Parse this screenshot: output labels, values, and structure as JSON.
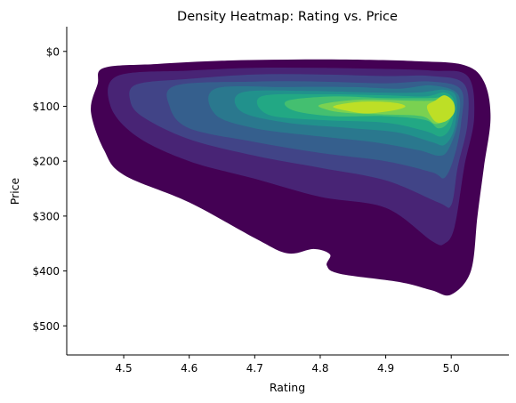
{
  "chart_data": {
    "type": "heatmap",
    "subtype": "kde-filled-contour",
    "title": "Density Heatmap: Rating vs. Price",
    "xlabel": "Rating",
    "ylabel": "Price",
    "x_ticks": [
      4.5,
      4.6,
      4.7,
      4.8,
      4.9,
      5.0
    ],
    "x_tick_labels": [
      "4.5",
      "4.6",
      "4.7",
      "4.8",
      "4.9",
      "5.0"
    ],
    "y_ticks": [
      0,
      100,
      200,
      300,
      400,
      500
    ],
    "y_tick_labels": [
      "$0",
      "$100",
      "$200",
      "$300",
      "$400",
      "$500"
    ],
    "xlim": [
      4.413,
      5.088
    ],
    "ylim": [
      553,
      -45
    ],
    "y_axis_inverted": true,
    "colormap": "viridis",
    "grid": false,
    "colors": [
      "#440154",
      "#482475",
      "#414487",
      "#355f8d",
      "#2a788e",
      "#21918c",
      "#22a884",
      "#44bf70",
      "#7ad151",
      "#bddf26"
    ],
    "levels": [
      {
        "level": 1,
        "color": "#440154",
        "outline": [
          [
            4.47,
            30
          ],
          [
            4.55,
            23
          ],
          [
            4.65,
            17
          ],
          [
            4.75,
            15
          ],
          [
            4.85,
            15
          ],
          [
            4.95,
            18
          ],
          [
            5.02,
            25
          ],
          [
            5.05,
            55
          ],
          [
            5.06,
            120
          ],
          [
            5.05,
            210
          ],
          [
            5.04,
            300
          ],
          [
            5.03,
            400
          ],
          [
            5.0,
            443
          ],
          [
            4.97,
            435
          ],
          [
            4.92,
            420
          ],
          [
            4.83,
            405
          ],
          [
            4.81,
            390
          ],
          [
            4.815,
            370
          ],
          [
            4.79,
            360
          ],
          [
            4.75,
            368
          ],
          [
            4.7,
            340
          ],
          [
            4.6,
            275
          ],
          [
            4.5,
            225
          ],
          [
            4.47,
            180
          ],
          [
            4.45,
            110
          ],
          [
            4.46,
            60
          ]
        ]
      },
      {
        "level": 2,
        "color": "#482475",
        "outline": [
          [
            4.49,
            45
          ],
          [
            4.6,
            35
          ],
          [
            4.7,
            30
          ],
          [
            4.8,
            30
          ],
          [
            4.9,
            32
          ],
          [
            4.97,
            35
          ],
          [
            5.025,
            45
          ],
          [
            5.035,
            120
          ],
          [
            5.02,
            210
          ],
          [
            5.005,
            320
          ],
          [
            4.99,
            350
          ],
          [
            4.97,
            345
          ],
          [
            4.9,
            285
          ],
          [
            4.8,
            265
          ],
          [
            4.7,
            232
          ],
          [
            4.6,
            200
          ],
          [
            4.52,
            155
          ],
          [
            4.48,
            100
          ]
        ]
      },
      {
        "level": 3,
        "color": "#414487",
        "outline": [
          [
            4.52,
            60
          ],
          [
            4.6,
            50
          ],
          [
            4.7,
            42
          ],
          [
            4.8,
            42
          ],
          [
            4.9,
            45
          ],
          [
            4.97,
            45
          ],
          [
            5.02,
            60
          ],
          [
            5.025,
            130
          ],
          [
            5.01,
            210
          ],
          [
            5.0,
            280
          ],
          [
            4.98,
            275
          ],
          [
            4.9,
            235
          ],
          [
            4.8,
            212
          ],
          [
            4.7,
            190
          ],
          [
            4.6,
            160
          ],
          [
            4.53,
            120
          ],
          [
            4.51,
            90
          ]
        ]
      },
      {
        "level": 4,
        "color": "#355f8d",
        "outline": [
          [
            4.58,
            62
          ],
          [
            4.7,
            55
          ],
          [
            4.8,
            55
          ],
          [
            4.9,
            58
          ],
          [
            4.97,
            55
          ],
          [
            5.015,
            70
          ],
          [
            5.015,
            130
          ],
          [
            5.005,
            190
          ],
          [
            4.99,
            230
          ],
          [
            4.97,
            220
          ],
          [
            4.9,
            200
          ],
          [
            4.8,
            185
          ],
          [
            4.7,
            165
          ],
          [
            4.6,
            140
          ],
          [
            4.57,
            100
          ]
        ]
      },
      {
        "level": 5,
        "color": "#2a788e",
        "outline": [
          [
            4.64,
            68
          ],
          [
            4.75,
            65
          ],
          [
            4.85,
            65
          ],
          [
            4.92,
            68
          ],
          [
            4.97,
            62
          ],
          [
            5.01,
            78
          ],
          [
            5.01,
            130
          ],
          [
            4.995,
            180
          ],
          [
            4.98,
            190
          ],
          [
            4.95,
            180
          ],
          [
            4.88,
            165
          ],
          [
            4.8,
            155
          ],
          [
            4.7,
            140
          ],
          [
            4.64,
            115
          ]
        ]
      },
      {
        "level": 6,
        "color": "#21918c",
        "outline": [
          [
            4.68,
            75
          ],
          [
            4.78,
            72
          ],
          [
            4.88,
            75
          ],
          [
            4.95,
            75
          ],
          [
            4.99,
            70
          ],
          [
            5.008,
            85
          ],
          [
            5.005,
            140
          ],
          [
            4.99,
            170
          ],
          [
            4.97,
            165
          ],
          [
            4.92,
            148
          ],
          [
            4.85,
            140
          ],
          [
            4.75,
            130
          ],
          [
            4.68,
            110
          ]
        ]
      },
      {
        "level": 7,
        "color": "#22a884",
        "outline": [
          [
            4.71,
            82
          ],
          [
            4.8,
            78
          ],
          [
            4.9,
            80
          ],
          [
            4.96,
            82
          ],
          [
            4.99,
            75
          ],
          [
            5.005,
            92
          ],
          [
            5.0,
            135
          ],
          [
            4.985,
            155
          ],
          [
            4.96,
            145
          ],
          [
            4.9,
            130
          ],
          [
            4.8,
            125
          ],
          [
            4.72,
            115
          ]
        ]
      },
      {
        "level": 8,
        "color": "#44bf70",
        "outline": [
          [
            4.75,
            90
          ],
          [
            4.82,
            82
          ],
          [
            4.9,
            85
          ],
          [
            4.97,
            85
          ],
          [
            4.995,
            82
          ],
          [
            5.005,
            100
          ],
          [
            4.995,
            130
          ],
          [
            4.98,
            140
          ],
          [
            4.96,
            125
          ],
          [
            4.9,
            118
          ],
          [
            4.82,
            118
          ],
          [
            4.76,
            108
          ]
        ]
      },
      {
        "level": 9,
        "color": "#7ad151",
        "outline": [
          [
            4.8,
            97
          ],
          [
            4.86,
            88
          ],
          [
            4.94,
            90
          ],
          [
            4.97,
            90
          ],
          [
            4.995,
            88
          ],
          [
            5.003,
            105
          ],
          [
            4.992,
            125
          ],
          [
            4.975,
            132
          ],
          [
            4.955,
            118
          ],
          [
            4.9,
            115
          ],
          [
            4.84,
            112
          ],
          [
            4.81,
            106
          ]
        ]
      },
      {
        "level": 10,
        "color": "#bddf26",
        "outline": [
          [
            4.82,
            100
          ],
          [
            4.86,
            92
          ],
          [
            4.91,
            93
          ],
          [
            4.93,
            100
          ],
          [
            4.91,
            108
          ],
          [
            4.87,
            113
          ],
          [
            4.84,
            108
          ]
        ]
      },
      {
        "level": 10,
        "color": "#bddf26",
        "outline": [
          [
            4.975,
            90
          ],
          [
            4.99,
            80
          ],
          [
            5.003,
            92
          ],
          [
            5.005,
            110
          ],
          [
            4.995,
            125
          ],
          [
            4.98,
            130
          ],
          [
            4.97,
            120
          ],
          [
            4.963,
            100
          ]
        ]
      }
    ]
  }
}
